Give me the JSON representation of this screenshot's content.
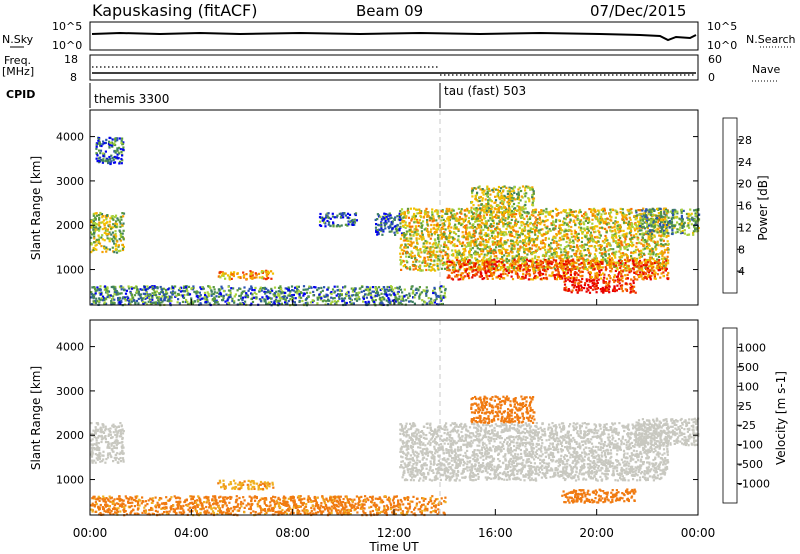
{
  "header": {
    "station": "Kapuskasing (fitACF)",
    "beam": "Beam 09",
    "date": "07/Dec/2015"
  },
  "top_panel": {
    "left_label": "N.Sky",
    "left_ticks": [
      "10^5",
      "10^0"
    ],
    "right_ticks": [
      "10^5",
      "10^0"
    ],
    "right_label": "N.Search",
    "freq_label_1": "Freq.",
    "freq_label_2": "[MHz]",
    "freq_ticks": [
      "18",
      "8"
    ],
    "nave_label": "Nave",
    "nave_ticks": [
      "60",
      "0"
    ],
    "cpid_label": "CPID"
  },
  "cpid": {
    "segments": [
      {
        "start_hour": 0,
        "name": "themis 3300"
      },
      {
        "start_hour": 14.0,
        "name": "tau (fast) 503"
      }
    ]
  },
  "colors": {
    "power": [
      "#0000ee",
      "#2a52b0",
      "#3e8060",
      "#5a9a3e",
      "#a8d23a",
      "#f2c200",
      "#f5a000",
      "#f57000",
      "#ee3000",
      "#e80000"
    ],
    "velocity": [
      "#1a3fb0",
      "#3a70b8",
      "#3c9a50",
      "#6ac240",
      "#c8c8c0",
      "#c8c8c0",
      "#f0b020",
      "#f07a10",
      "#ee4010",
      "#ee0000"
    ],
    "ground_scatter": "#c8c8c0"
  },
  "chart_data": [
    {
      "type": "heatmap",
      "name": "power",
      "xlabel": "",
      "ylabel": "Slant Range [km]",
      "xlim": [
        0,
        24
      ],
      "ylim": [
        200,
        4600
      ],
      "yticks": [
        1000,
        2000,
        3000,
        4000
      ],
      "colorbar": {
        "label": "Power [dB]",
        "ticks": [
          "28",
          "24",
          "20",
          "16",
          "12",
          "8",
          "4"
        ],
        "range": [
          0,
          30
        ]
      },
      "regions": [
        {
          "t0": 0.0,
          "t1": 1.3,
          "r0": 1400,
          "r1": 2300,
          "value": 14
        },
        {
          "t0": 0.2,
          "t1": 1.3,
          "r0": 3400,
          "r1": 4000,
          "value": 6
        },
        {
          "t0": 0.0,
          "t1": 14.0,
          "r0": 220,
          "r1": 650,
          "value": 8
        },
        {
          "t0": 5.0,
          "t1": 7.2,
          "r0": 800,
          "r1": 1000,
          "value": 20
        },
        {
          "t0": 9.0,
          "t1": 10.5,
          "r0": 2000,
          "r1": 2300,
          "value": 6
        },
        {
          "t0": 11.2,
          "t1": 12.3,
          "r0": 1800,
          "r1": 2300,
          "value": 6
        },
        {
          "t0": 12.2,
          "t1": 22.8,
          "r0": 1000,
          "r1": 2400,
          "value": 16
        },
        {
          "t0": 14.0,
          "t1": 22.8,
          "r0": 800,
          "r1": 1250,
          "value": 24
        },
        {
          "t0": 18.6,
          "t1": 21.5,
          "r0": 500,
          "r1": 800,
          "value": 28
        },
        {
          "t0": 21.5,
          "t1": 24.0,
          "r0": 1800,
          "r1": 2400,
          "value": 10
        },
        {
          "t0": 15.0,
          "t1": 17.5,
          "r0": 2300,
          "r1": 2900,
          "value": 14
        }
      ]
    },
    {
      "type": "heatmap",
      "name": "velocity",
      "xlabel": "Time UT",
      "ylabel": "Slant Range [km]",
      "xlim": [
        0,
        24
      ],
      "xticks": [
        "00:00",
        "04:00",
        "08:00",
        "12:00",
        "16:00",
        "20:00",
        "00:00"
      ],
      "ylim": [
        200,
        4600
      ],
      "yticks": [
        1000,
        2000,
        3000,
        4000
      ],
      "colorbar": {
        "label": "Velocity [m s-1]",
        "ticks": [
          "1000",
          "500",
          "100",
          "25",
          "-25",
          "-100",
          "-500",
          "-1000"
        ]
      },
      "regions": [
        {
          "t0": 0.0,
          "t1": 1.3,
          "r0": 1400,
          "r1": 2300,
          "value": 0
        },
        {
          "t0": 0.0,
          "t1": 14.0,
          "r0": 220,
          "r1": 650,
          "value": -150
        },
        {
          "t0": 5.0,
          "t1": 7.2,
          "r0": 800,
          "r1": 1000,
          "value": -80
        },
        {
          "t0": 12.2,
          "t1": 22.8,
          "r0": 1000,
          "r1": 2300,
          "value": 0
        },
        {
          "t0": 18.6,
          "t1": 21.5,
          "r0": 500,
          "r1": 800,
          "value": -200
        },
        {
          "t0": 21.5,
          "t1": 24.0,
          "r0": 1800,
          "r1": 2400,
          "value": 0
        },
        {
          "t0": 15.0,
          "t1": 17.5,
          "r0": 2300,
          "r1": 2900,
          "value": -300
        }
      ]
    }
  ]
}
